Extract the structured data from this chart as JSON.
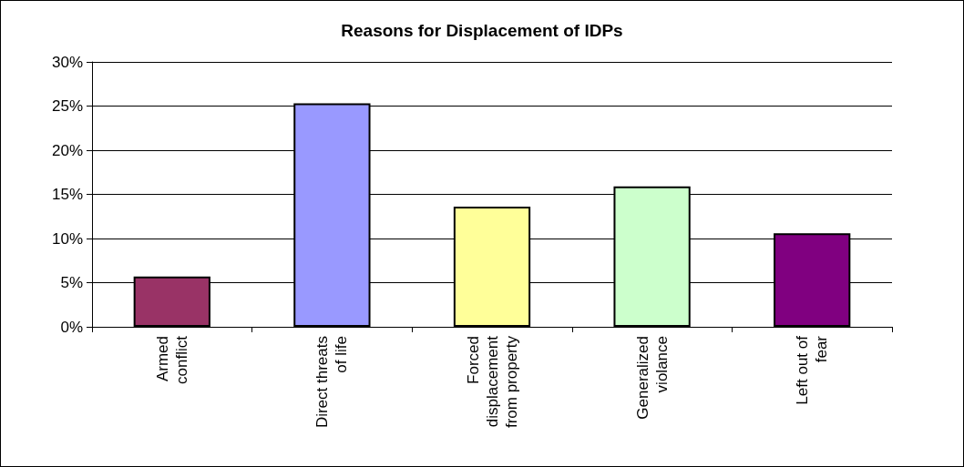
{
  "chart_data": {
    "type": "bar",
    "title": "Reasons for Displacement of IDPs",
    "categories": [
      "Armed\nconflict",
      "Direct threats\nof life",
      "Forced\ndisplacement\nfrom property",
      "Generalized\nviolance",
      "Left out of\nfear"
    ],
    "values": [
      5.7,
      25.3,
      13.6,
      15.9,
      10.6
    ],
    "colors": [
      "#993366",
      "#9999ff",
      "#ffff99",
      "#ccffcc",
      "#800080"
    ],
    "ylim": [
      0,
      30
    ],
    "yticks": [
      {
        "value": 0,
        "label": "0%"
      },
      {
        "value": 5,
        "label": "5%"
      },
      {
        "value": 10,
        "label": "10%"
      },
      {
        "value": 15,
        "label": "15%"
      },
      {
        "value": 20,
        "label": "20%"
      },
      {
        "value": 25,
        "label": "25%"
      },
      {
        "value": 30,
        "label": "30%"
      }
    ],
    "grid": "y"
  }
}
